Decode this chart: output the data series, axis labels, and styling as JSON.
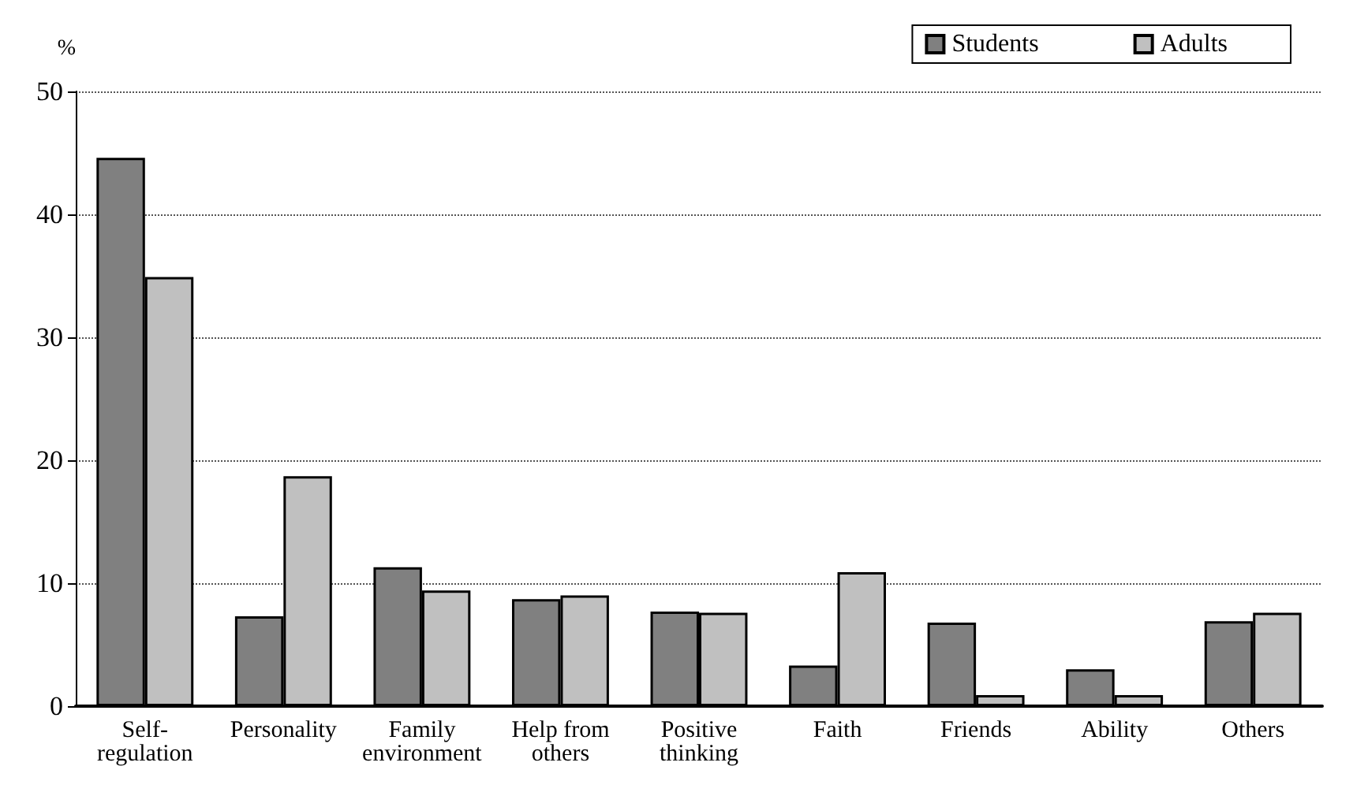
{
  "chart_data": {
    "type": "bar",
    "ylabel": "%",
    "categories": [
      "Self-\nregulation",
      "Personality",
      "Family\nenvironment",
      "Help from\nothers",
      "Positive\nthinking",
      "Faith",
      "Friends",
      "Ability",
      "Others"
    ],
    "series": [
      {
        "name": "Students",
        "color": "#808080",
        "values": [
          44.6,
          7.3,
          11.3,
          8.7,
          7.7,
          3.3,
          6.8,
          3.0,
          6.9
        ]
      },
      {
        "name": "Adults",
        "color": "#c0c0c0",
        "values": [
          34.9,
          18.7,
          9.4,
          9.0,
          7.6,
          10.9,
          0.9,
          0.9,
          7.6
        ]
      }
    ],
    "ylim": [
      0,
      50
    ],
    "yticks": [
      0,
      10,
      20,
      30,
      40,
      50
    ],
    "grid": "y",
    "legend": "top right"
  }
}
